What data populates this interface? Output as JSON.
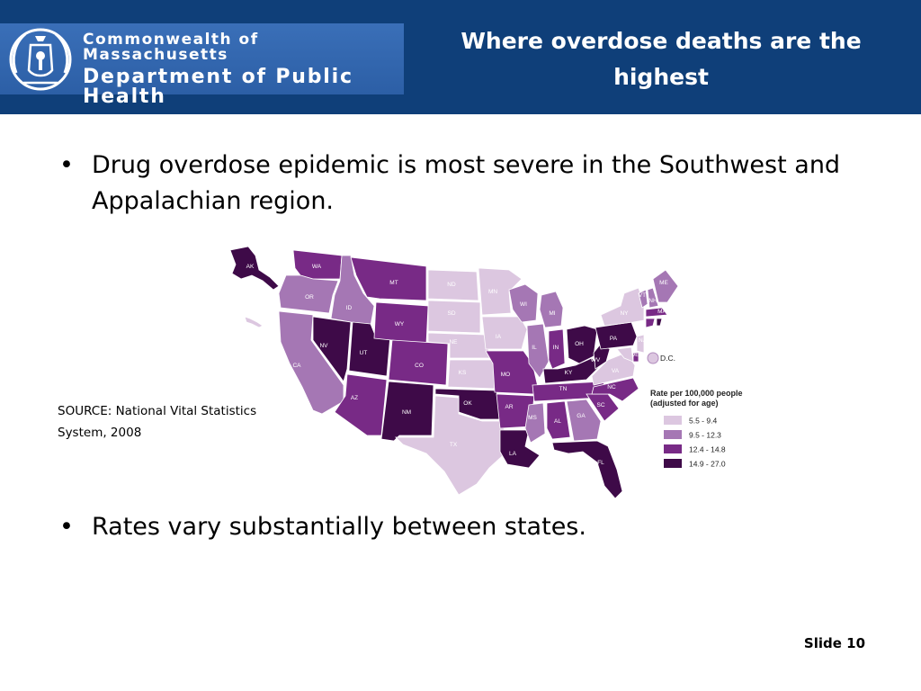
{
  "header": {
    "agency_line1": "Commonwealth of Massachusetts",
    "agency_line2": "Department of Public Health",
    "title": "Where overdose deaths are the highest",
    "background_color": "#0f3f79"
  },
  "bullets": [
    "Drug overdose epidemic is most severe in the Southwest and Appalachian region.",
    "Rates vary substantially between states."
  ],
  "bullet_symbol": "•",
  "source": {
    "line1": "SOURCE: National Vital Statistics",
    "line2": "System, 2008"
  },
  "slide_number": "Slide 10",
  "map": {
    "legend_title_line1": "Rate per 100,000 people",
    "legend_title_line2": "(adjusted for age)",
    "categories": [
      {
        "label": "5.5 - 9.4",
        "color": "#dcc7e0"
      },
      {
        "label": "9.5 - 12.3",
        "color": "#a577b4"
      },
      {
        "label": "12.4 - 14.8",
        "color": "#782a86"
      },
      {
        "label": "14.9 - 27.0",
        "color": "#3e0a48"
      }
    ],
    "dc_label": "D.C.",
    "states": [
      {
        "abbr": "AK",
        "class": 3
      },
      {
        "abbr": "HI",
        "class": 0
      },
      {
        "abbr": "WA",
        "class": 2
      },
      {
        "abbr": "OR",
        "class": 1
      },
      {
        "abbr": "CA",
        "class": 1
      },
      {
        "abbr": "ID",
        "class": 1
      },
      {
        "abbr": "NV",
        "class": 3
      },
      {
        "abbr": "UT",
        "class": 3
      },
      {
        "abbr": "AZ",
        "class": 2
      },
      {
        "abbr": "MT",
        "class": 2
      },
      {
        "abbr": "WY",
        "class": 2
      },
      {
        "abbr": "CO",
        "class": 2
      },
      {
        "abbr": "NM",
        "class": 3
      },
      {
        "abbr": "ND",
        "class": 0
      },
      {
        "abbr": "SD",
        "class": 0
      },
      {
        "abbr": "NE",
        "class": 0
      },
      {
        "abbr": "KS",
        "class": 0
      },
      {
        "abbr": "OK",
        "class": 3
      },
      {
        "abbr": "TX",
        "class": 0
      },
      {
        "abbr": "MN",
        "class": 0
      },
      {
        "abbr": "IA",
        "class": 0
      },
      {
        "abbr": "MO",
        "class": 2
      },
      {
        "abbr": "AR",
        "class": 2
      },
      {
        "abbr": "LA",
        "class": 3
      },
      {
        "abbr": "WI",
        "class": 1
      },
      {
        "abbr": "IL",
        "class": 1
      },
      {
        "abbr": "MI",
        "class": 1
      },
      {
        "abbr": "IN",
        "class": 2
      },
      {
        "abbr": "OH",
        "class": 3
      },
      {
        "abbr": "KY",
        "class": 3
      },
      {
        "abbr": "TN",
        "class": 2
      },
      {
        "abbr": "MS",
        "class": 1
      },
      {
        "abbr": "AL",
        "class": 2
      },
      {
        "abbr": "GA",
        "class": 1
      },
      {
        "abbr": "FL",
        "class": 3
      },
      {
        "abbr": "SC",
        "class": 2
      },
      {
        "abbr": "NC",
        "class": 2
      },
      {
        "abbr": "VA",
        "class": 0
      },
      {
        "abbr": "WV",
        "class": 3
      },
      {
        "abbr": "PA",
        "class": 3
      },
      {
        "abbr": "NY",
        "class": 0
      },
      {
        "abbr": "VT",
        "class": 1
      },
      {
        "abbr": "NH",
        "class": 1
      },
      {
        "abbr": "ME",
        "class": 1
      },
      {
        "abbr": "MA",
        "class": 2
      },
      {
        "abbr": "CT",
        "class": 2
      },
      {
        "abbr": "RI",
        "class": 3
      },
      {
        "abbr": "NJ",
        "class": 0
      },
      {
        "abbr": "DE",
        "class": 2
      },
      {
        "abbr": "MD",
        "class": 0
      }
    ]
  }
}
